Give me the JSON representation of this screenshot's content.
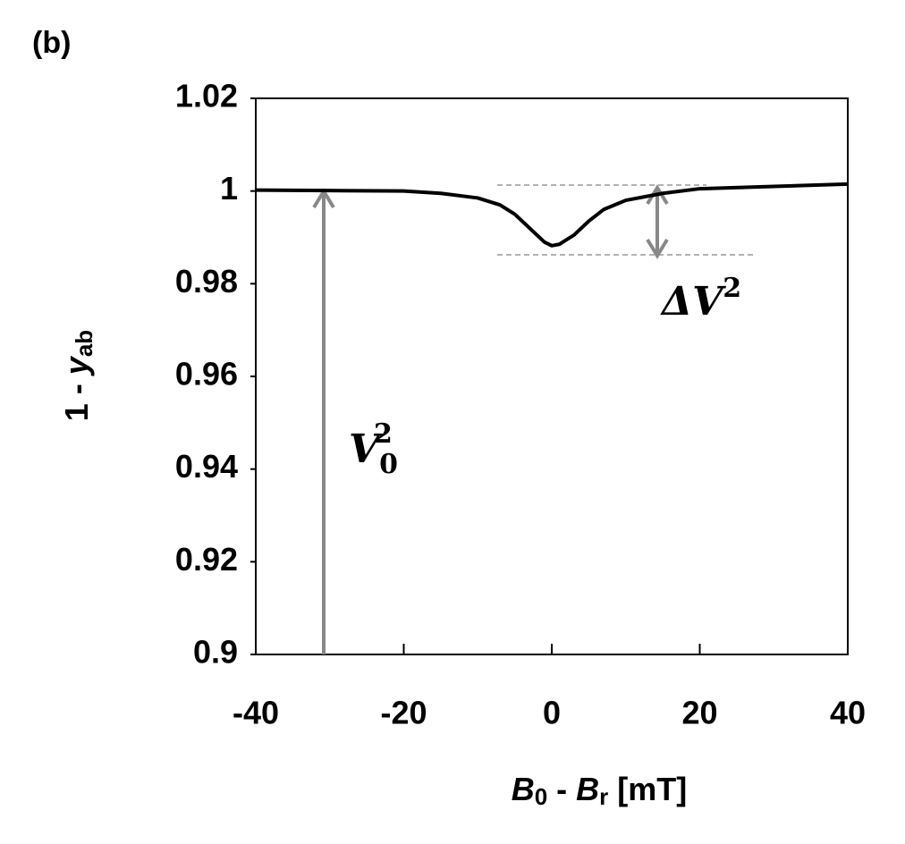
{
  "chart_data": {
    "type": "line",
    "title": "(b)",
    "x_label": [
      "B",
      "0",
      " - ",
      "B",
      "r",
      " [mT]"
    ],
    "y_label": [
      "1 - ",
      "y",
      "ab"
    ],
    "x": [
      -40,
      -30,
      -20,
      -15,
      -10,
      -7,
      -5,
      -3,
      -1,
      0,
      1,
      3,
      5,
      7,
      10,
      15,
      20,
      30,
      40
    ],
    "series": [
      {
        "color": "#000000",
        "values": [
          1.0002,
          1.0001,
          1.0,
          0.9995,
          0.9985,
          0.997,
          0.995,
          0.992,
          0.989,
          0.9882,
          0.9885,
          0.9905,
          0.9935,
          0.996,
          0.998,
          0.9995,
          1.0005,
          1.001,
          1.0015
        ]
      }
    ],
    "xlim": [
      -40,
      40
    ],
    "xticks": [
      -40,
      -20,
      0,
      20,
      40
    ],
    "ylim": [
      0.9,
      1.02
    ],
    "yticks": [
      0.9,
      0.92,
      0.94,
      0.96,
      0.98,
      1,
      1.02
    ],
    "annotations": [
      [
        "ΔV",
        "2"
      ],
      [
        "V",
        "0",
        "2"
      ]
    ]
  }
}
